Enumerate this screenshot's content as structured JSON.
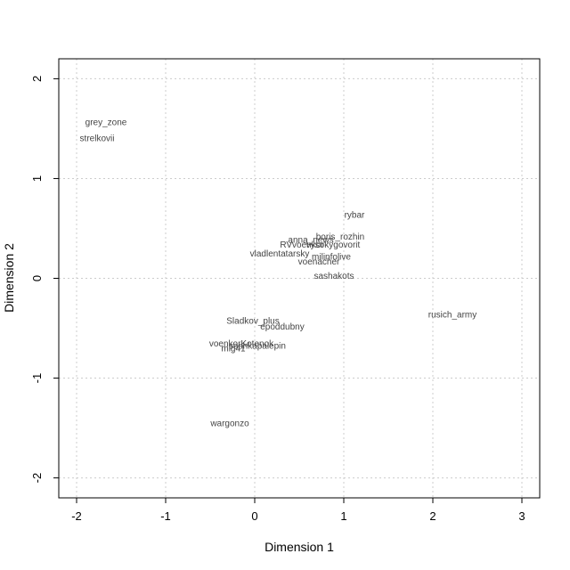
{
  "chart_data": {
    "type": "scatter",
    "title": "",
    "xlabel": "Dimension 1",
    "ylabel": "Dimension 2",
    "xlim": [
      -2.2,
      3.2
    ],
    "ylim": [
      -2.2,
      2.2
    ],
    "xticks": [
      -2,
      -1,
      0,
      1,
      2,
      3
    ],
    "yticks": [
      -2,
      -1,
      0,
      1,
      2
    ],
    "grid": true,
    "grid_style": "dotted",
    "points": [
      {
        "label": "grey_zone",
        "x": -1.67,
        "y": 1.56
      },
      {
        "label": "strelkovii",
        "x": -1.77,
        "y": 1.4
      },
      {
        "label": "rybar",
        "x": 1.12,
        "y": 0.63
      },
      {
        "label": "boris_rozhin",
        "x": 0.96,
        "y": 0.41
      },
      {
        "label": "anna_news",
        "x": 0.63,
        "y": 0.38
      },
      {
        "label": "RVvoenkor",
        "x": 0.53,
        "y": 0.33
      },
      {
        "label": "vysokygovorit",
        "x": 0.88,
        "y": 0.33
      },
      {
        "label": "vladlentatarsky",
        "x": 0.28,
        "y": 0.24
      },
      {
        "label": "milinfolive",
        "x": 0.86,
        "y": 0.21
      },
      {
        "label": "voenacher",
        "x": 0.72,
        "y": 0.16
      },
      {
        "label": "sashakots",
        "x": 0.89,
        "y": 0.02
      },
      {
        "label": "rusich_army",
        "x": 2.22,
        "y": -0.37
      },
      {
        "label": "Sladkov_plus",
        "x": -0.02,
        "y": -0.43
      },
      {
        "label": "epoddubny",
        "x": 0.31,
        "y": -0.49
      },
      {
        "label": "voenkorKotenok",
        "x": -0.15,
        "y": -0.66
      },
      {
        "label": "mig41",
        "x": -0.24,
        "y": -0.71
      },
      {
        "label": "sashkapalepin",
        "x": 0.03,
        "y": -0.68
      },
      {
        "label": "wargonzo",
        "x": -0.28,
        "y": -1.46
      }
    ]
  }
}
